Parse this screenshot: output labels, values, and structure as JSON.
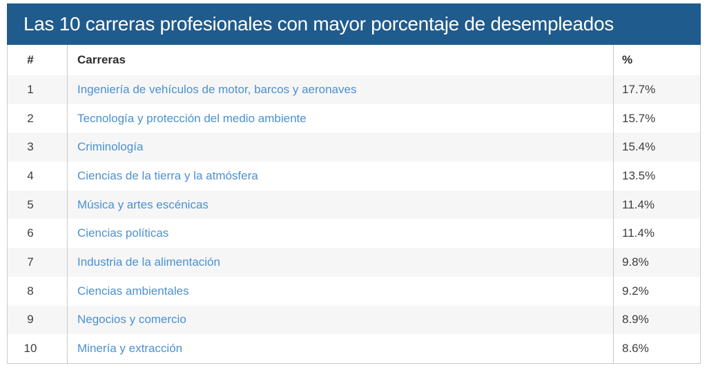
{
  "title": "Las 10 carreras profesionales con mayor porcentaje de desempleados",
  "table": {
    "columns": {
      "rank": "#",
      "career": "Carreras",
      "percent": "%"
    },
    "rows": [
      {
        "rank": "1",
        "career": "Ingeniería de vehículos de motor, barcos y aeronaves",
        "percent": "17.7%"
      },
      {
        "rank": "2",
        "career": "Tecnología y protección del medio ambiente",
        "percent": "15.7%"
      },
      {
        "rank": "3",
        "career": "Criminología",
        "percent": "15.4%"
      },
      {
        "rank": "4",
        "career": "Ciencias de la tierra y la atmósfera",
        "percent": "13.5%"
      },
      {
        "rank": "5",
        "career": "Música y artes escénicas",
        "percent": "11.4%"
      },
      {
        "rank": "6",
        "career": "Ciencias políticas",
        "percent": "11.4%"
      },
      {
        "rank": "7",
        "career": "Industria de la alimentación",
        "percent": "9.8%"
      },
      {
        "rank": "8",
        "career": "Ciencias ambientales",
        "percent": "9.2%"
      },
      {
        "rank": "9",
        "career": "Negocios y comercio",
        "percent": "8.9%"
      },
      {
        "rank": "10",
        "career": "Minería y extracción",
        "percent": "8.6%"
      }
    ]
  },
  "chart_data": {
    "type": "table",
    "title": "Las 10 carreras profesionales con mayor porcentaje de desempleados",
    "columns": [
      "#",
      "Carreras",
      "%"
    ],
    "categories": [
      "Ingeniería de vehículos de motor, barcos y aeronaves",
      "Tecnología y protección del medio ambiente",
      "Criminología",
      "Ciencias de la tierra y la atmósfera",
      "Música y artes escénicas",
      "Ciencias políticas",
      "Industria de la alimentación",
      "Ciencias ambientales",
      "Negocios y comercio",
      "Minería y extracción"
    ],
    "values": [
      17.7,
      15.7,
      15.4,
      13.5,
      11.4,
      11.4,
      9.8,
      9.2,
      8.9,
      8.6
    ],
    "unit": "%",
    "ranks": [
      1,
      2,
      3,
      4,
      5,
      6,
      7,
      8,
      9,
      10
    ]
  },
  "colors": {
    "header_bg": "#1f5b8c",
    "career_blue": "#4a90d2",
    "alt_bg": "#f6f6f6",
    "border": "#c9c9c9",
    "dark_text": "#3d3d3d",
    "head_text": "#2d2d2d"
  }
}
